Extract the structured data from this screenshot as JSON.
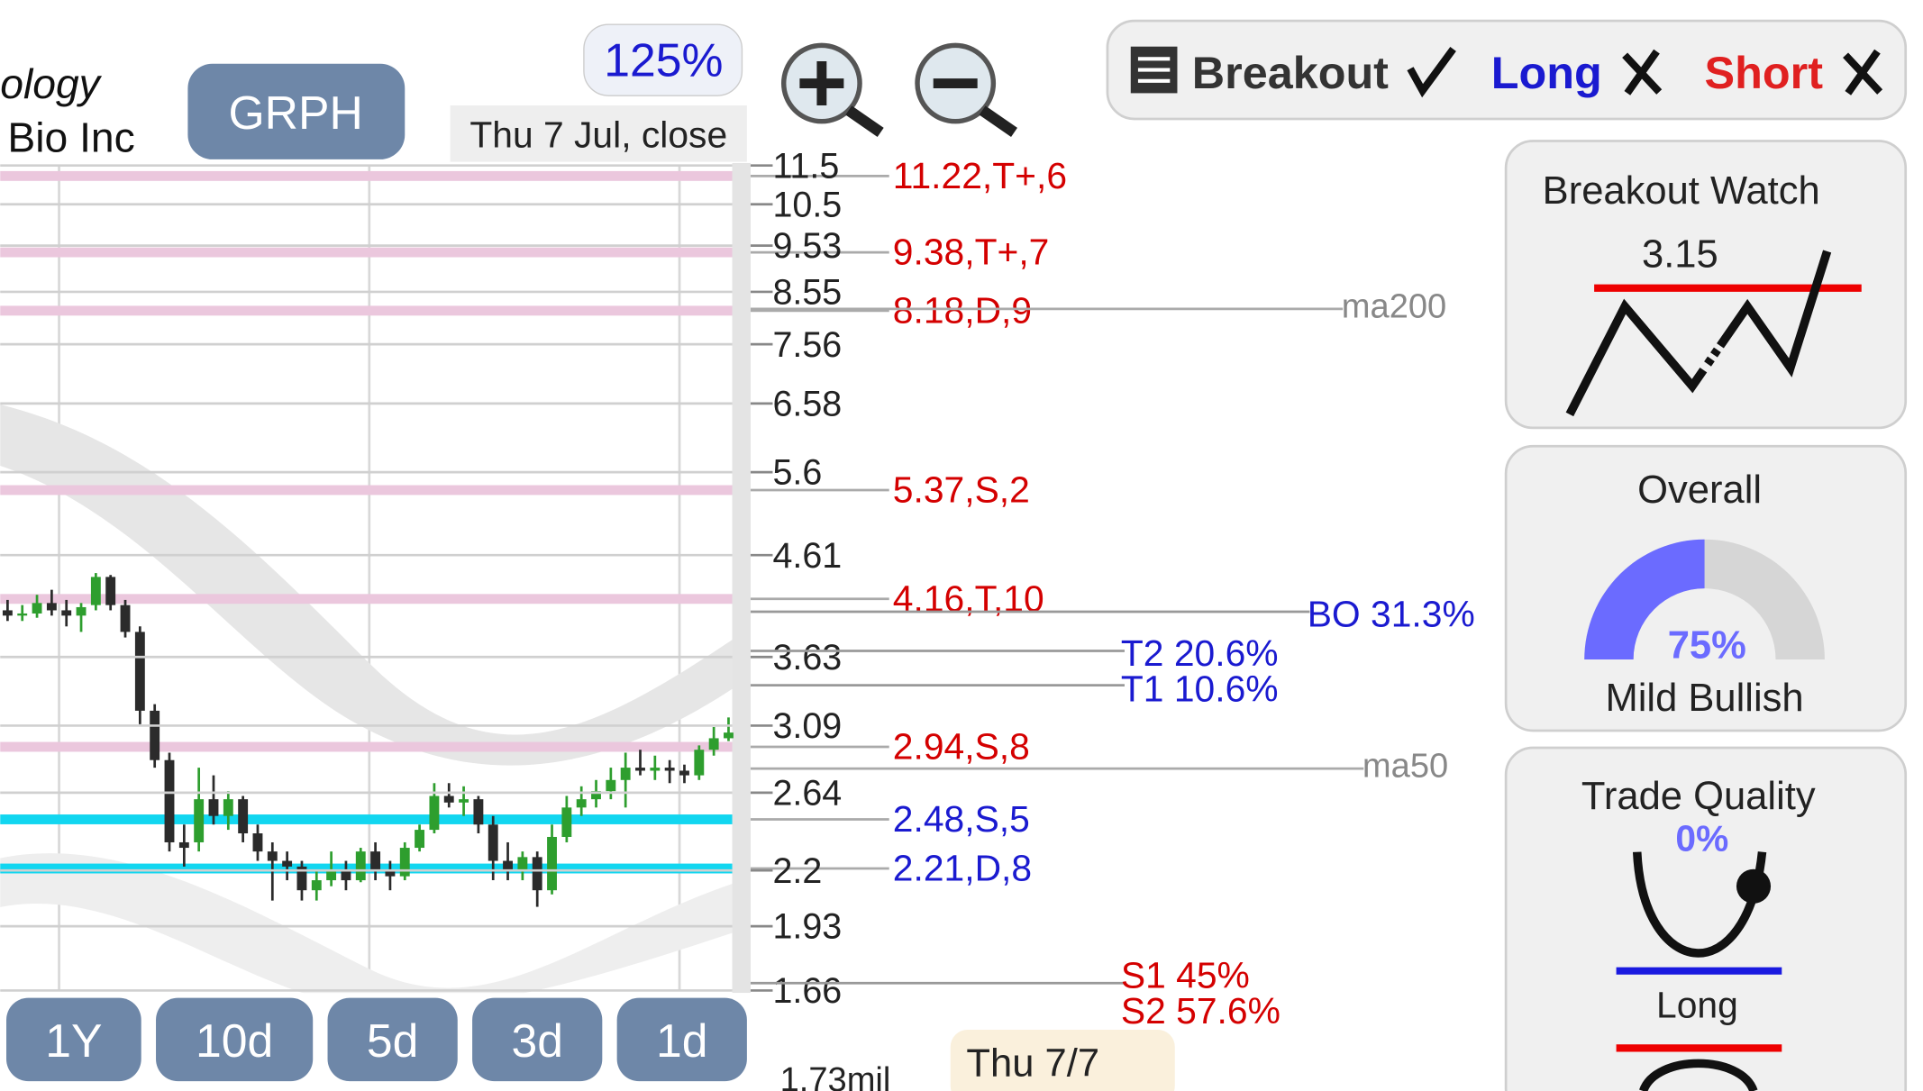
{
  "ui": {
    "company_line1": "ology",
    "company_line2": "Bio Inc",
    "ticker": "GRPH",
    "zoom": "125%",
    "session": "Thu 7 Jul, close",
    "signals": {
      "breakout": "Breakout",
      "long": "Long",
      "short": "Short"
    },
    "periods": [
      "1Y",
      "10d",
      "5d",
      "3d",
      "1d"
    ],
    "volume": "1.73mil",
    "date_tag": "Thu 7/7",
    "ma_labels": [
      "ma200",
      "ma50"
    ],
    "targets": [
      "BO 31.3%",
      "T2 20.6%",
      "T1 10.6%",
      "S1 45%",
      "S2 57.6%"
    ],
    "breakout_watch": {
      "title": "Breakout Watch",
      "level": "3.15"
    },
    "overall": {
      "title": "Overall",
      "score": "75%",
      "verdict": "Mild Bullish"
    },
    "trade_quality": {
      "title": "Trade Quality",
      "score": "0%",
      "side": "Long"
    }
  },
  "chart_data": {
    "type": "candlestick",
    "log": true,
    "ylim": [
      1.66,
      11.5
    ],
    "yticks": [
      11.5,
      10.5,
      9.53,
      8.55,
      7.56,
      6.58,
      5.6,
      4.61,
      3.63,
      3.09,
      2.64,
      2.2,
      1.93,
      1.66
    ],
    "up_color": "#2e9e2e",
    "down_color": "#2b2b2b",
    "open": [
      4.05,
      4.0,
      4.02,
      4.12,
      4.05,
      4.0,
      4.1,
      4.38,
      4.1,
      3.85,
      3.2,
      2.85,
      2.35,
      2.35,
      2.6,
      2.5,
      2.6,
      2.4,
      2.3,
      2.25,
      2.22,
      2.1,
      2.15,
      2.2,
      2.15,
      2.3,
      2.2,
      2.17,
      2.32,
      2.42,
      2.62,
      2.58,
      2.6,
      2.45,
      2.25,
      2.2,
      2.27,
      2.1,
      2.38,
      2.55,
      2.6,
      2.65,
      2.72,
      2.8,
      2.78,
      2.8,
      2.78,
      2.75,
      2.92,
      3.0
    ],
    "high": [
      4.15,
      4.1,
      4.2,
      4.25,
      4.15,
      4.12,
      4.42,
      4.4,
      4.15,
      3.9,
      3.25,
      2.9,
      2.45,
      2.8,
      2.75,
      2.65,
      2.62,
      2.45,
      2.35,
      2.3,
      2.25,
      2.2,
      2.3,
      2.25,
      2.32,
      2.35,
      2.25,
      2.35,
      2.45,
      2.7,
      2.7,
      2.68,
      2.62,
      2.5,
      2.35,
      2.3,
      2.3,
      2.45,
      2.62,
      2.68,
      2.72,
      2.8,
      2.9,
      2.92,
      2.88,
      2.85,
      2.82,
      2.95,
      3.08,
      3.15
    ],
    "low": [
      3.95,
      3.95,
      3.98,
      4.0,
      3.9,
      3.85,
      4.05,
      4.05,
      3.8,
      3.1,
      2.8,
      2.3,
      2.22,
      2.3,
      2.45,
      2.42,
      2.35,
      2.25,
      2.05,
      2.15,
      2.05,
      2.05,
      2.12,
      2.1,
      2.14,
      2.15,
      2.1,
      2.15,
      2.3,
      2.4,
      2.55,
      2.5,
      2.4,
      2.15,
      2.15,
      2.15,
      2.02,
      2.08,
      2.35,
      2.5,
      2.55,
      2.6,
      2.55,
      2.75,
      2.72,
      2.7,
      2.7,
      2.72,
      2.88,
      2.98
    ],
    "close": [
      4.0,
      4.02,
      4.12,
      4.05,
      4.0,
      4.08,
      4.38,
      4.1,
      3.85,
      3.2,
      2.85,
      2.35,
      2.32,
      2.6,
      2.5,
      2.6,
      2.4,
      2.3,
      2.25,
      2.22,
      2.1,
      2.15,
      2.2,
      2.15,
      2.3,
      2.2,
      2.17,
      2.32,
      2.42,
      2.62,
      2.58,
      2.6,
      2.45,
      2.25,
      2.2,
      2.27,
      2.1,
      2.38,
      2.55,
      2.6,
      2.65,
      2.72,
      2.8,
      2.78,
      2.8,
      2.78,
      2.75,
      2.92,
      3.0,
      3.04
    ],
    "levels": [
      {
        "value": 11.22,
        "label": "11.22,T+,6",
        "color": "#d40000",
        "band": "#ebc7dd"
      },
      {
        "value": 9.38,
        "label": "9.38,T+,7",
        "color": "#d40000",
        "band": "#ebc7dd"
      },
      {
        "value": 8.18,
        "label": "8.18,D,9",
        "color": "#d40000",
        "band": "#ebc7dd"
      },
      {
        "value": 5.37,
        "label": "5.37,S,2",
        "color": "#d40000",
        "band": "#ebc7dd"
      },
      {
        "value": 4.16,
        "label": "4.16,T,10",
        "color": "#d40000",
        "band": "#ebc7dd"
      },
      {
        "value": 2.94,
        "label": "2.94,S,8",
        "color": "#d40000",
        "band": "#ebc7dd"
      },
      {
        "value": 2.48,
        "label": "2.48,S,5",
        "color": "#1a1ad0",
        "band": "#12d6f0"
      },
      {
        "value": 2.21,
        "label": "2.21,D,8",
        "color": "#1a1ad0",
        "band": "#12d6f0"
      }
    ]
  }
}
